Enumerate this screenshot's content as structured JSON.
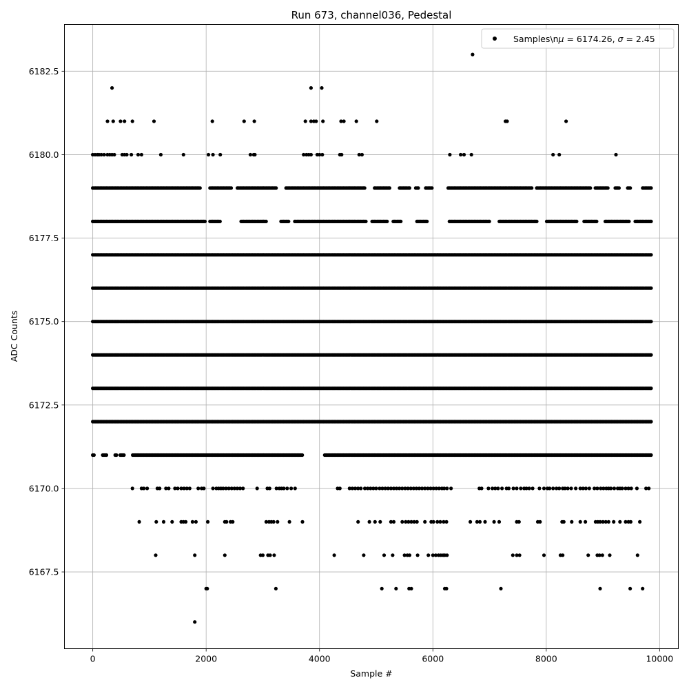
{
  "chart_data": {
    "type": "scatter",
    "title": "Run 673, channel036, Pedestal",
    "xlabel": "Sample #",
    "ylabel": "ADC Counts",
    "xlim": [
      -500,
      10330
    ],
    "ylim": [
      6165.2,
      6183.9
    ],
    "xticks": [
      0,
      2000,
      4000,
      6000,
      8000,
      10000
    ],
    "xtick_labels": [
      "0",
      "2000",
      "4000",
      "6000",
      "8000",
      "10000"
    ],
    "yticks": [
      6167.5,
      6170.0,
      6172.5,
      6175.0,
      6177.5,
      6180.0,
      6182.5
    ],
    "ytick_labels": [
      "6167.5",
      "6170.0",
      "6172.5",
      "6175.0",
      "6177.5",
      "6180.0",
      "6182.5"
    ],
    "grid": true,
    "legend_position": "top-right",
    "series": [
      {
        "name": "Samples\\n$\\mu$ = 6174.26, $\\sigma$ = 2.45",
        "legend_label_parts": [
          "Samples\\n",
          "μ",
          " = 6174.26, ",
          "σ",
          " = 2.45"
        ],
        "color": "#000000",
        "marker": "circle",
        "x_range": [
          0,
          9850
        ],
        "level_samples": [
          {
            "y": 6166,
            "x": [
              1800
            ]
          },
          {
            "y": 6167,
            "x": [
              2000,
              2020,
              3230,
              5100,
              5350,
              5580,
              5620,
              6210,
              6240,
              7200,
              8950,
              9480,
              9700
            ]
          },
          {
            "y": 6168,
            "x": [
              1110,
              1800,
              2330,
              2960,
              3000,
              3090,
              3130,
              3200,
              4260,
              4780,
              5140,
              5290,
              5500,
              5550,
              5590,
              5730,
              5920,
              6000,
              6050,
              6100,
              6140,
              6180,
              6210,
              6250,
              7410,
              7480,
              7530,
              7960,
              8250,
              8290,
              8740,
              8900,
              8940,
              8990,
              9120,
              9610
            ]
          },
          {
            "y": 6169,
            "x": [
              820,
              1120,
              1250,
              1400,
              1560,
              1600,
              1640,
              1760,
              1820,
              2030,
              2330,
              2360,
              2430,
              2470,
              3060,
              3110,
              3150,
              3190,
              3260,
              3470,
              3700,
              4680,
              4880,
              4980,
              5070,
              5260,
              5310,
              5460,
              5520,
              5570,
              5620,
              5670,
              5720,
              5860,
              5970,
              6010,
              6080,
              6130,
              6190,
              6240,
              6660,
              6780,
              6830,
              6920,
              7080,
              7170,
              7480,
              7520,
              7850,
              7890,
              8280,
              8310,
              8450,
              8600,
              8690,
              8870,
              8910,
              8950,
              9000,
              9050,
              9100,
              9190,
              9300,
              9400,
              9450,
              9490,
              9650
            ]
          },
          {
            "y": 6170,
            "x": [
              700,
              860,
              900,
              960,
              1140,
              1180,
              1290,
              1340,
              1450,
              1500,
              1560,
              1610,
              1660,
              1710,
              1860,
              1920,
              1960,
              2120,
              2180,
              2220,
              2260,
              2300,
              2350,
              2400,
              2450,
              2500,
              2550,
              2600,
              2650,
              2900,
              3080,
              3120,
              3240,
              3290,
              3330,
              3370,
              3430,
              3500,
              3570,
              4320,
              4360,
              4530,
              4580,
              4630,
              4680,
              4730,
              4800,
              4850,
              4900,
              4950,
              5000,
              5060,
              5110,
              5160,
              5210,
              5260,
              5310,
              5360,
              5410,
              5460,
              5510,
              5560,
              5610,
              5660,
              5710,
              5760,
              5810,
              5860,
              5910,
              5960,
              6010,
              6060,
              6110,
              6160,
              6200,
              6250,
              6320,
              6820,
              6860,
              6980,
              7050,
              7100,
              7150,
              7220,
              7300,
              7340,
              7420,
              7480,
              7550,
              7610,
              7650,
              7700,
              7760,
              7880,
              7960,
              8020,
              8060,
              8120,
              8180,
              8230,
              8290,
              8330,
              8380,
              8440,
              8520,
              8600,
              8650,
              8700,
              8760,
              8850,
              8900,
              8960,
              9010,
              9060,
              9100,
              9140,
              9200,
              9260,
              9300,
              9340,
              9400,
              9450,
              9500,
              9600,
              9760,
              9810
            ]
          }
        ],
        "dense_levels": [
          6171,
          6172,
          6173,
          6174,
          6175,
          6176,
          6177,
          6178,
          6179
        ],
        "dense_level_gaps": {
          "6171": [
            [
              40,
              170
            ],
            [
              250,
              380
            ],
            [
              420,
              480
            ],
            [
              560,
              700
            ],
            [
              3700,
              3850
            ],
            [
              3860,
              4070
            ]
          ],
          "6178": [
            [
              2000,
              2050
            ],
            [
              2250,
              2600
            ],
            [
              3060,
              3320
            ],
            [
              3470,
              3560
            ],
            [
              4820,
              4920
            ],
            [
              5200,
              5300
            ],
            [
              5450,
              5700
            ],
            [
              5900,
              6270
            ],
            [
              7000,
              7150
            ],
            [
              7850,
              8000
            ],
            [
              8550,
              8650
            ],
            [
              8900,
              9020
            ],
            [
              9480,
              9560
            ]
          ],
          "6179": [
            [
              1900,
              2050
            ],
            [
              2450,
              2550
            ],
            [
              3250,
              3400
            ],
            [
              4800,
              4970
            ],
            [
              5240,
              5400
            ],
            [
              5600,
              5690
            ],
            [
              5750,
              5860
            ],
            [
              6000,
              6260
            ],
            [
              7750,
              7820
            ],
            [
              8800,
              8850
            ],
            [
              9100,
              9200
            ],
            [
              9300,
              9420
            ],
            [
              9500,
              9700
            ]
          ]
        },
        "upper_samples": [
          {
            "y": 6180,
            "x": [
              0,
              40,
              80,
              110,
              150,
              200,
              260,
              300,
              340,
              380,
              520,
              560,
              600,
              680,
              800,
              860,
              1200,
              1600,
              2040,
              2120,
              2250,
              2780,
              2840,
              2860,
              3720,
              3770,
              3810,
              3850,
              3960,
              4000,
              4050,
              4360,
              4390,
              4700,
              4750,
              6300,
              6490,
              6550,
              6680,
              8120,
              8230,
              9230
            ]
          },
          {
            "y": 6181,
            "x": [
              260,
              360,
              490,
              560,
              700,
              1080,
              2110,
              2670,
              2850,
              3750,
              3850,
              3900,
              3940,
              4060,
              4380,
              4430,
              4650,
              5010,
              7280,
              7310,
              8350
            ]
          },
          {
            "y": 6182,
            "x": [
              340,
              3850,
              4040
            ]
          },
          {
            "y": 6183,
            "x": [
              6700
            ]
          }
        ]
      }
    ]
  }
}
